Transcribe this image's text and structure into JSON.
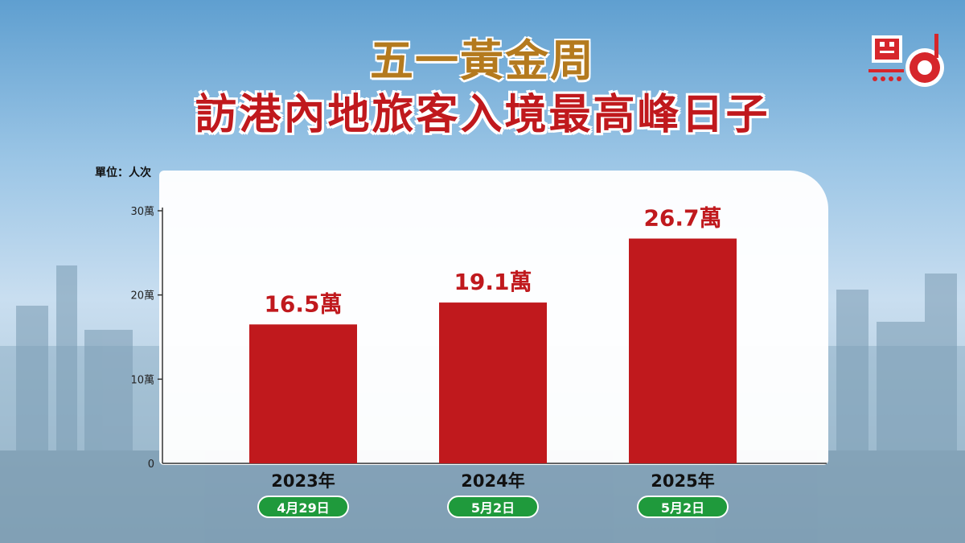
{
  "title": {
    "line1": "五一黃金周",
    "line2": "訪港內地旅客入境最高峰日子"
  },
  "unit_label": "單位：人次",
  "colors": {
    "bar": "#c0191d",
    "title_line1": "#b47a1e",
    "title_line2": "#c0191d",
    "date_pill": "#1f9a3c"
  },
  "chart_data": {
    "type": "bar",
    "categories": [
      "2023年",
      "2024年",
      "2025年"
    ],
    "dates": [
      "4月29日",
      "5月2日",
      "5月2日"
    ],
    "values": [
      16.5,
      19.1,
      26.7
    ],
    "value_labels": [
      "16.5萬",
      "19.1萬",
      "26.7萬"
    ],
    "ylim": [
      0,
      30
    ],
    "yticks": [
      0,
      10,
      20,
      30
    ],
    "ytick_labels": [
      "0",
      "10萬",
      "20萬",
      "30萬"
    ],
    "grid": false,
    "ylabel": "單位：人次"
  }
}
